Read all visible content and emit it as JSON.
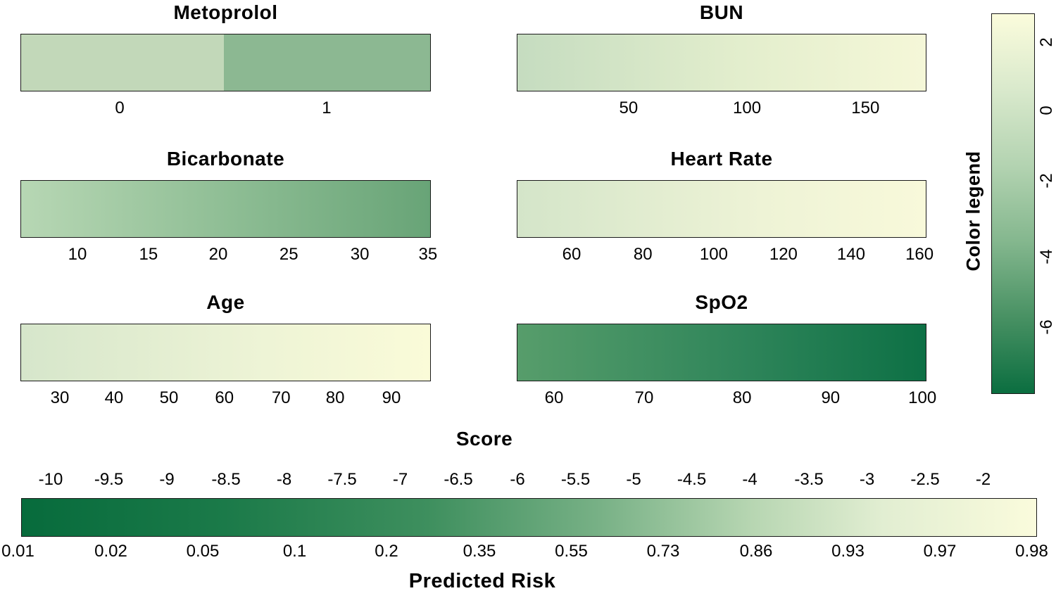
{
  "panels": [
    {
      "title": "Metoprolol",
      "ticks": [
        "0",
        "1"
      ],
      "colors": {
        "value0": "#c2d8b9",
        "value1": "#8cb892"
      }
    },
    {
      "title": "BUN",
      "ticks": [
        "50",
        "100",
        "150"
      ],
      "colors": {
        "left": "#c5dcc0",
        "right": "#f5f7d8"
      }
    },
    {
      "title": "Bicarbonate",
      "ticks": [
        "10",
        "15",
        "20",
        "25",
        "30",
        "35"
      ],
      "colors": {
        "left": "#b7d7b4",
        "right": "#68a477"
      }
    },
    {
      "title": "Heart Rate",
      "ticks": [
        "60",
        "80",
        "100",
        "120",
        "140",
        "160"
      ],
      "colors": {
        "left": "#d4e5c9",
        "right": "#f8f9da"
      }
    },
    {
      "title": "Age",
      "ticks": [
        "30",
        "40",
        "50",
        "60",
        "70",
        "80",
        "90"
      ],
      "colors": {
        "left": "#d6e6cb",
        "right": "#fafbd8"
      }
    },
    {
      "title": "SpO2",
      "ticks": [
        "60",
        "70",
        "80",
        "90",
        "100"
      ],
      "colors": {
        "left": "#579d6b",
        "right": "#0d7045"
      }
    }
  ],
  "color_legend": {
    "title": "Color legend",
    "ticks": [
      "2",
      "0",
      "-2",
      "-4",
      "-6"
    ],
    "color_top": "#fbfcdc",
    "color_bottom": "#0b6e40"
  },
  "score_axis": {
    "title": "Score",
    "ticks": [
      "-10",
      "-9.5",
      "-9",
      "-8.5",
      "-8",
      "-7.5",
      "-7",
      "-6.5",
      "-6",
      "-5.5",
      "-5",
      "-4.5",
      "-4",
      "-3.5",
      "-3",
      "-2.5",
      "-2"
    ]
  },
  "risk_axis": {
    "title": "Predicted Risk",
    "labels": [
      "0.01",
      "0.02",
      "0.05",
      "0.1",
      "0.2",
      "0.35",
      "0.55",
      "0.73",
      "0.86",
      "0.93",
      "0.97",
      "0.98"
    ]
  },
  "chart_data": {
    "type": "heatmap",
    "subtype": "nomogram with color-encoded score scales",
    "colormap": "dark green (low score) to pale yellow (high score)",
    "panels": [
      {
        "name": "Metoprolol",
        "tick_values": [
          0,
          1
        ],
        "scale": "discrete",
        "segment_colors": [
          "#c2d8b9",
          "#8cb892"
        ]
      },
      {
        "name": "BUN",
        "tick_values": [
          50,
          100,
          150
        ],
        "gradient": [
          "#c5dcc0",
          "#f5f7d8"
        ],
        "direction": "greener at low values, paler at high values"
      },
      {
        "name": "Bicarbonate",
        "tick_values": [
          10,
          15,
          20,
          25,
          30,
          35
        ],
        "gradient": [
          "#b7d7b4",
          "#68a477"
        ],
        "direction": "darker green at high values"
      },
      {
        "name": "Heart Rate",
        "tick_values": [
          60,
          80,
          100,
          120,
          140,
          160
        ],
        "gradient": [
          "#d4e5c9",
          "#f8f9da"
        ],
        "direction": "paler at high values"
      },
      {
        "name": "Age",
        "tick_values": [
          30,
          40,
          50,
          60,
          70,
          80,
          90
        ],
        "gradient": [
          "#d6e6cb",
          "#fafbd8"
        ],
        "direction": "paler at high values"
      },
      {
        "name": "SpO2",
        "tick_values": [
          60,
          70,
          80,
          90,
          100
        ],
        "gradient": [
          "#579d6b",
          "#0d7045"
        ],
        "direction": "darker green at high values"
      }
    ],
    "color_legend": {
      "title": "Color legend",
      "tick_values": [
        2,
        0,
        -2,
        -4,
        -6
      ],
      "top_color": "#fbfcdc",
      "bottom_color": "#0b6e40",
      "orientation": "vertical, high values at top"
    },
    "score_axis": {
      "title": "Score",
      "tick_values": [
        -10,
        -9.5,
        -9,
        -8.5,
        -8,
        -7.5,
        -7,
        -6.5,
        -6,
        -5.5,
        -5,
        -4.5,
        -4,
        -3.5,
        -3,
        -2.5,
        -2
      ],
      "bar_gradient": [
        "#076b3c",
        "#fafbdc"
      ]
    },
    "predicted_risk": {
      "title": "Predicted Risk",
      "values": [
        0.01,
        0.02,
        0.05,
        0.1,
        0.2,
        0.35,
        0.55,
        0.73,
        0.86,
        0.93,
        0.97,
        0.98
      ],
      "note": "risk labels evenly spaced under the score color bar"
    }
  }
}
